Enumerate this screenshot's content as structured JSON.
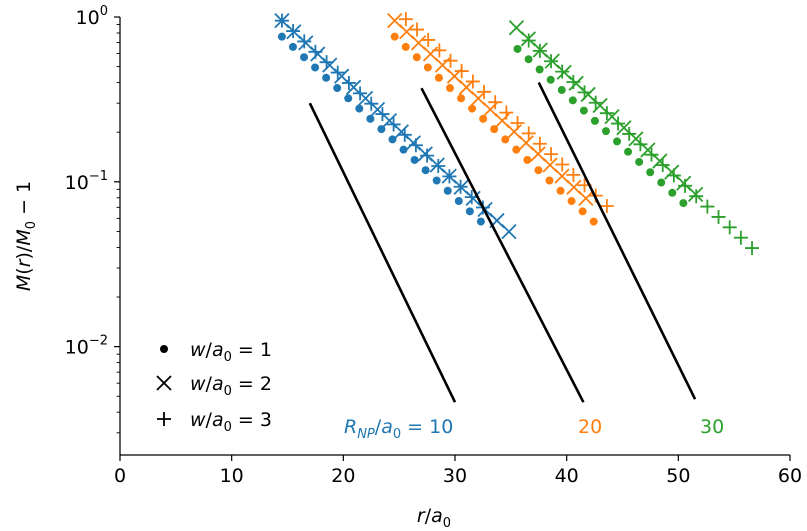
{
  "chart_data": {
    "type": "scatter",
    "xlabel": "r/a0",
    "ylabel": "M(r)/M0 − 1",
    "xlim": [
      0,
      60
    ],
    "ylim": [
      0.0022,
      1.0
    ],
    "yscale": "log",
    "grid": false,
    "xticks": [
      0,
      10,
      20,
      30,
      40,
      50,
      60
    ],
    "xtick_labels": [
      "0",
      "10",
      "20",
      "30",
      "40",
      "50",
      "60"
    ],
    "yticks": [
      1,
      0.1,
      0.01
    ],
    "legend": {
      "placement": "bottom-left",
      "entries": [
        {
          "marker": "dot",
          "label": "w/a0 = 1"
        },
        {
          "marker": "x",
          "label": "w/a0 = 2"
        },
        {
          "marker": "plus",
          "label": "w/a0 = 3"
        }
      ]
    },
    "annotations": [
      {
        "text": "R_NP/a0 = 10",
        "color": "#1f77b4",
        "x": 29.6,
        "y": 0.0033
      },
      {
        "text": "20",
        "color": "#ff7f0e",
        "x": 42.1,
        "y": 0.0033
      },
      {
        "text": "30",
        "color": "#2ca02c",
        "x": 53.0,
        "y": 0.0033
      }
    ],
    "groups": [
      {
        "R": 10,
        "color": "#1f77b4",
        "series": [
          {
            "marker": "dot",
            "w": 1,
            "x0": 14.5,
            "y0": 0.76,
            "dx": 0.99,
            "n": 19
          },
          {
            "marker": "x",
            "w": 2,
            "x0": 14.5,
            "y0": 0.95,
            "dx": 1.07,
            "n": 20
          },
          {
            "marker": "plus",
            "w": 3,
            "x0": 14.5,
            "y0": 0.95,
            "dx": 1.0,
            "n": 19
          }
        ],
        "fit": {
          "x": [
            17.0,
            30.0
          ],
          "y": [
            0.3,
            0.0046
          ]
        }
      },
      {
        "R": 20,
        "color": "#ff7f0e",
        "series": [
          {
            "marker": "dot",
            "w": 1,
            "x0": 24.6,
            "y0": 0.76,
            "dx": 0.99,
            "n": 19
          },
          {
            "marker": "x",
            "w": 2,
            "x0": 24.6,
            "y0": 0.95,
            "dx": 1.07,
            "n": 17
          },
          {
            "marker": "plus",
            "w": 3,
            "x0": 25.6,
            "y0": 0.97,
            "dx": 1.0,
            "n": 19
          }
        ],
        "fit": {
          "x": [
            27.0,
            41.5
          ],
          "y": [
            0.37,
            0.0046
          ]
        }
      },
      {
        "R": 30,
        "color": "#2ca02c",
        "series": [
          {
            "marker": "dot",
            "w": 1,
            "x0": 35.6,
            "y0": 0.64,
            "dx": 0.99,
            "n": 16
          },
          {
            "marker": "x",
            "w": 2,
            "x0": 35.5,
            "y0": 0.86,
            "dx": 1.07,
            "n": 16
          },
          {
            "marker": "plus",
            "w": 3,
            "x0": 36.6,
            "y0": 0.72,
            "dx": 1.0,
            "n": 21
          }
        ],
        "fit": {
          "x": [
            37.5,
            51.5
          ],
          "y": [
            0.4,
            0.0048
          ]
        }
      }
    ]
  }
}
